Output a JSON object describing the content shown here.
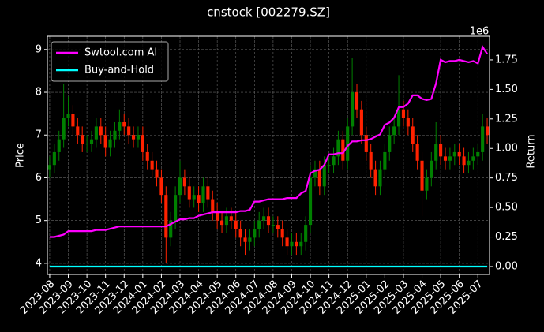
{
  "chart_data": {
    "type": "candlestick",
    "title": "cnstock [002279.SZ]",
    "ylabel": "Price",
    "y2label": "Return",
    "y2_offset_label": "1e6",
    "categories": [
      "2023-08",
      null,
      null,
      null,
      "2023-09",
      null,
      null,
      null,
      "2023-10",
      null,
      null,
      null,
      "2023-11",
      null,
      null,
      null,
      "2023-12",
      null,
      null,
      null,
      "2024-01",
      null,
      null,
      null,
      "2024-02",
      null,
      null,
      null,
      "2024-03",
      null,
      null,
      null,
      "2024-04",
      null,
      null,
      null,
      "2024-05",
      null,
      null,
      null,
      "2024-06",
      null,
      null,
      null,
      "2024-07",
      null,
      null,
      null,
      "2024-08",
      null,
      null,
      null,
      "2024-09",
      null,
      null,
      null,
      "2024-10",
      null,
      null,
      null,
      "2024-11",
      null,
      null,
      null,
      "2024-12",
      null,
      null,
      null,
      "2025-01",
      null,
      null,
      null,
      "2025-02",
      null,
      null,
      null,
      "2025-03",
      null,
      null,
      null,
      "2025-04",
      null,
      null,
      null,
      "2025-05",
      null,
      null,
      null,
      "2025-06",
      null,
      null,
      null,
      "2025-07",
      null,
      null
    ],
    "open": [
      6.2,
      6.3,
      6.6,
      6.9,
      7.4,
      7.5,
      7.2,
      7.0,
      6.8,
      6.8,
      6.9,
      7.2,
      7.0,
      6.7,
      6.9,
      7.1,
      7.3,
      7.2,
      7.0,
      6.9,
      7.0,
      6.6,
      6.4,
      6.2,
      6.0,
      5.6,
      4.6,
      5.0,
      5.6,
      6.0,
      5.8,
      5.5,
      5.6,
      5.4,
      5.8,
      5.5,
      5.2,
      5.0,
      4.9,
      5.1,
      5.0,
      4.8,
      4.6,
      4.5,
      4.6,
      4.8,
      5.0,
      5.1,
      4.9,
      4.9,
      4.8,
      4.6,
      4.4,
      4.5,
      4.4,
      4.5,
      4.9,
      6.0,
      6.2,
      5.8,
      6.3,
      6.3,
      6.5,
      6.9,
      6.4,
      7.2,
      8.0,
      7.6,
      7.0,
      6.6,
      6.2,
      5.8,
      6.2,
      6.6,
      7.0,
      7.2,
      7.6,
      7.4,
      7.2,
      6.8,
      6.4,
      5.7,
      6.0,
      6.4,
      6.8,
      6.5,
      6.4,
      6.5,
      6.6,
      6.5,
      6.3,
      6.4,
      6.5,
      6.6,
      7.2
    ],
    "high": [
      6.5,
      6.8,
      7.1,
      8.2,
      7.9,
      7.7,
      7.4,
      7.2,
      7.0,
      7.1,
      7.4,
      7.4,
      7.2,
      7.1,
      7.3,
      7.6,
      7.5,
      7.4,
      7.2,
      7.2,
      7.2,
      6.8,
      6.6,
      6.4,
      6.2,
      5.8,
      5.2,
      5.8,
      6.4,
      6.2,
      6.0,
      5.8,
      5.8,
      6.0,
      6.0,
      5.7,
      5.4,
      5.2,
      5.3,
      5.3,
      5.2,
      5.0,
      4.8,
      4.8,
      5.0,
      5.2,
      5.3,
      5.3,
      5.1,
      5.1,
      5.0,
      4.8,
      4.7,
      4.7,
      4.7,
      5.1,
      6.3,
      6.4,
      6.4,
      6.5,
      6.5,
      6.7,
      7.1,
      7.1,
      7.4,
      8.8,
      8.2,
      7.8,
      7.2,
      6.8,
      6.4,
      6.4,
      6.8,
      7.2,
      7.4,
      8.4,
      7.8,
      7.6,
      7.4,
      7.0,
      6.6,
      6.2,
      6.6,
      7.3,
      7.0,
      6.7,
      6.7,
      6.8,
      6.8,
      6.7,
      6.6,
      6.7,
      6.8,
      7.5,
      7.4
    ],
    "low": [
      6.0,
      6.1,
      6.4,
      6.7,
      7.2,
      7.0,
      6.8,
      6.6,
      6.6,
      6.6,
      6.7,
      6.8,
      6.5,
      6.5,
      6.7,
      6.9,
      7.0,
      6.8,
      6.7,
      6.7,
      6.4,
      6.2,
      6.0,
      5.8,
      5.4,
      4.0,
      4.4,
      4.8,
      5.4,
      5.6,
      5.3,
      5.3,
      5.2,
      5.2,
      5.3,
      5.0,
      4.8,
      4.7,
      4.7,
      4.8,
      4.6,
      4.4,
      4.2,
      4.3,
      4.4,
      4.6,
      4.8,
      4.7,
      4.7,
      4.6,
      4.4,
      4.2,
      4.2,
      4.2,
      4.2,
      4.3,
      4.7,
      5.8,
      5.6,
      5.6,
      6.1,
      6.1,
      6.3,
      6.2,
      6.2,
      7.0,
      7.4,
      6.8,
      6.4,
      6.0,
      5.6,
      5.6,
      6.0,
      6.4,
      6.8,
      7.0,
      7.2,
      7.0,
      6.6,
      6.2,
      5.1,
      5.5,
      5.8,
      6.2,
      6.3,
      6.2,
      6.2,
      6.3,
      6.3,
      6.1,
      6.1,
      6.2,
      6.3,
      6.4,
      6.8
    ],
    "close": [
      6.3,
      6.6,
      6.9,
      7.4,
      7.5,
      7.2,
      7.0,
      6.8,
      6.8,
      6.9,
      7.2,
      7.0,
      6.7,
      6.9,
      7.1,
      7.3,
      7.2,
      7.0,
      6.9,
      7.0,
      6.6,
      6.4,
      6.2,
      6.0,
      5.6,
      4.6,
      5.0,
      5.6,
      6.0,
      5.8,
      5.5,
      5.6,
      5.4,
      5.8,
      5.5,
      5.2,
      5.0,
      4.9,
      5.1,
      5.0,
      4.8,
      4.6,
      4.5,
      4.6,
      4.8,
      5.0,
      5.1,
      4.9,
      4.9,
      4.8,
      4.6,
      4.4,
      4.5,
      4.4,
      4.5,
      4.9,
      6.0,
      6.2,
      5.8,
      6.3,
      6.3,
      6.5,
      6.9,
      6.4,
      7.2,
      8.0,
      7.6,
      7.0,
      6.6,
      6.2,
      5.8,
      6.2,
      6.6,
      7.0,
      7.2,
      7.6,
      7.4,
      7.2,
      6.8,
      6.4,
      5.7,
      6.0,
      6.4,
      6.8,
      6.5,
      6.4,
      6.5,
      6.6,
      6.5,
      6.3,
      6.4,
      6.5,
      6.6,
      7.2,
      7.0
    ],
    "up_color": "#008000",
    "down_color": "#ff2200",
    "series": [
      {
        "name": "Swtool.com AI",
        "color": "#ff00ff",
        "axis": "y2",
        "values": [
          250000,
          250000,
          260000,
          270000,
          300000,
          300000,
          300000,
          300000,
          300000,
          300000,
          310000,
          310000,
          310000,
          320000,
          330000,
          340000,
          340000,
          340000,
          340000,
          340000,
          340000,
          340000,
          340000,
          340000,
          340000,
          340000,
          360000,
          380000,
          400000,
          400000,
          410000,
          410000,
          430000,
          440000,
          450000,
          460000,
          460000,
          460000,
          460000,
          460000,
          460000,
          470000,
          470000,
          480000,
          550000,
          550000,
          560000,
          570000,
          570000,
          570000,
          570000,
          580000,
          580000,
          580000,
          620000,
          640000,
          790000,
          810000,
          820000,
          860000,
          950000,
          950000,
          960000,
          960000,
          1020000,
          1060000,
          1060000,
          1070000,
          1070000,
          1080000,
          1100000,
          1120000,
          1200000,
          1220000,
          1260000,
          1350000,
          1350000,
          1380000,
          1450000,
          1450000,
          1420000,
          1410000,
          1420000,
          1550000,
          1750000,
          1730000,
          1740000,
          1740000,
          1750000,
          1740000,
          1730000,
          1740000,
          1720000,
          1860000,
          1800000
        ]
      },
      {
        "name": "Buy-and-Hold",
        "color": "#00ffff",
        "axis": "y2",
        "values": [
          0,
          0,
          0,
          0,
          0,
          0,
          0,
          0,
          0,
          0,
          0,
          0,
          0,
          0,
          0,
          0,
          0,
          0,
          0,
          0,
          0,
          0,
          0,
          0,
          0,
          0,
          0,
          0,
          0,
          0,
          0,
          0,
          0,
          0,
          0,
          0,
          0,
          0,
          0,
          0,
          0,
          0,
          0,
          0,
          0,
          0,
          0,
          0,
          0,
          0,
          0,
          0,
          0,
          0,
          0,
          0,
          0,
          0,
          0,
          0,
          0,
          0,
          0,
          0,
          0,
          0,
          0,
          0,
          0,
          0,
          0,
          0,
          0,
          0,
          0,
          0,
          0,
          0,
          0,
          0,
          0,
          0,
          0,
          0,
          0,
          0,
          0,
          0,
          0,
          0,
          0,
          0,
          0,
          0,
          0
        ]
      }
    ],
    "ylim": [
      3.74,
      9.31
    ],
    "yticks": [
      4,
      5,
      6,
      7,
      8,
      9
    ],
    "y2lim": [
      -67000,
      1950000
    ],
    "y2ticks": [
      {
        "value": 0,
        "label": "0.00"
      },
      {
        "value": 250000,
        "label": "0.25"
      },
      {
        "value": 500000,
        "label": "0.50"
      },
      {
        "value": 750000,
        "label": "0.75"
      },
      {
        "value": 1000000,
        "label": "1.00"
      },
      {
        "value": 1250000,
        "label": "1.25"
      },
      {
        "value": 1500000,
        "label": "1.50"
      },
      {
        "value": 1750000,
        "label": "1.75"
      }
    ],
    "grid": true,
    "legend": "upper left"
  }
}
